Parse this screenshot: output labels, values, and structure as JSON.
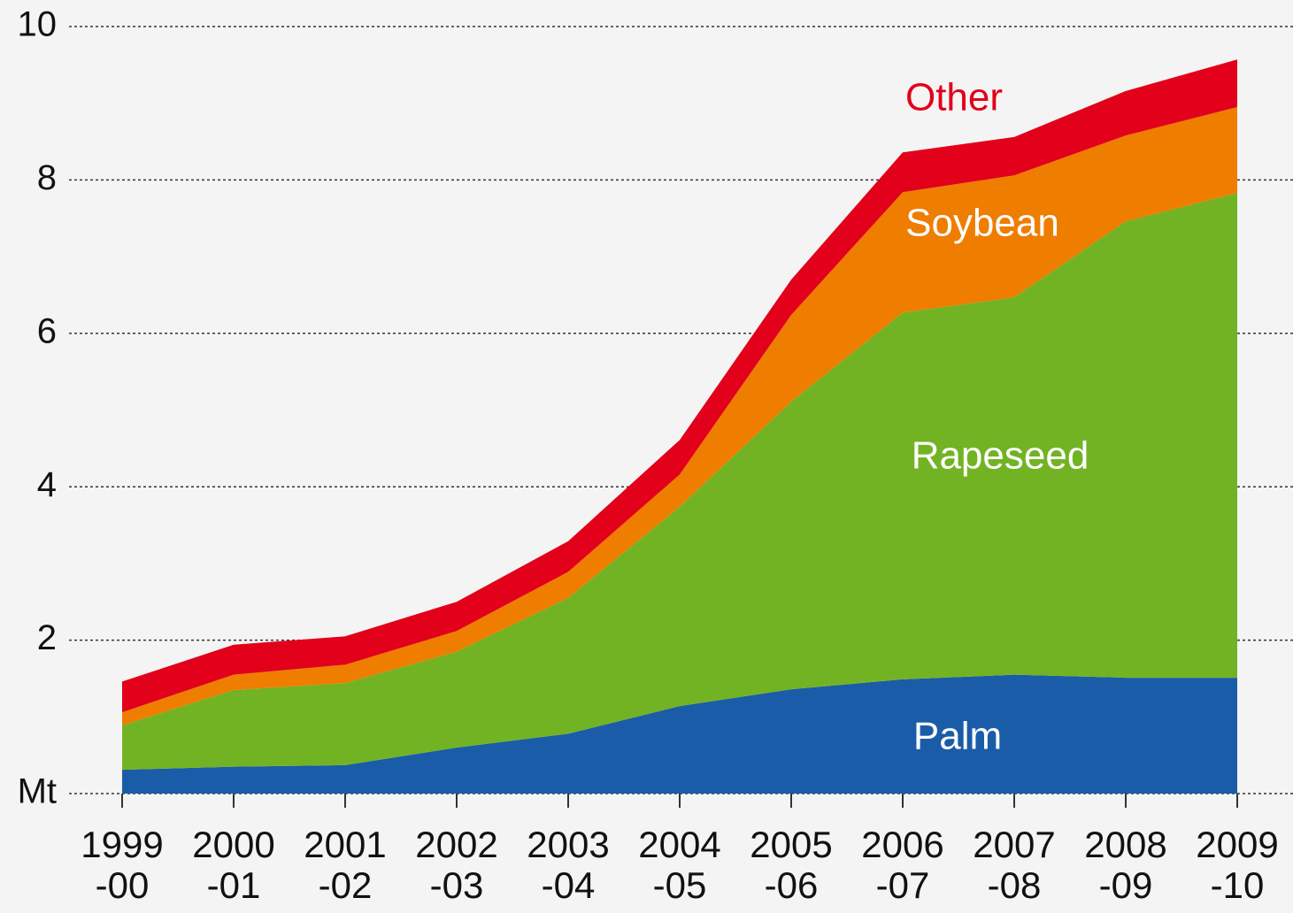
{
  "chart_data": {
    "type": "stacked_area",
    "categories": [
      [
        "1999",
        "-00"
      ],
      [
        "2000",
        "-01"
      ],
      [
        "2001",
        "-02"
      ],
      [
        "2002",
        "-03"
      ],
      [
        "2003",
        "-04"
      ],
      [
        "2004",
        "-05"
      ],
      [
        "2005",
        "-06"
      ],
      [
        "2006",
        "-07"
      ],
      [
        "2007",
        "-08"
      ],
      [
        "2008",
        "-09"
      ],
      [
        "2009",
        "-10"
      ]
    ],
    "series": [
      {
        "name": "Palm",
        "color": "#1a5ca8",
        "values": [
          0.31,
          0.35,
          0.37,
          0.6,
          0.78,
          1.14,
          1.36,
          1.49,
          1.55,
          1.51,
          1.51
        ]
      },
      {
        "name": "Rapeseed",
        "color": "#72b324",
        "values": [
          0.58,
          1.0,
          1.07,
          1.25,
          1.77,
          2.6,
          3.75,
          4.78,
          4.92,
          5.95,
          6.32
        ]
      },
      {
        "name": "Soybean",
        "color": "#ef7d00",
        "values": [
          0.17,
          0.2,
          0.24,
          0.27,
          0.34,
          0.42,
          1.13,
          1.57,
          1.59,
          1.12,
          1.12
        ]
      },
      {
        "name": "Other",
        "color": "#e2001a",
        "values": [
          0.4,
          0.39,
          0.37,
          0.38,
          0.4,
          0.45,
          0.46,
          0.52,
          0.5,
          0.58,
          0.62
        ]
      }
    ],
    "ylim": [
      0,
      10
    ],
    "yticks": [
      {
        "value": 0,
        "label": "Mt"
      },
      2,
      4,
      6,
      8,
      10
    ],
    "grid": true
  }
}
